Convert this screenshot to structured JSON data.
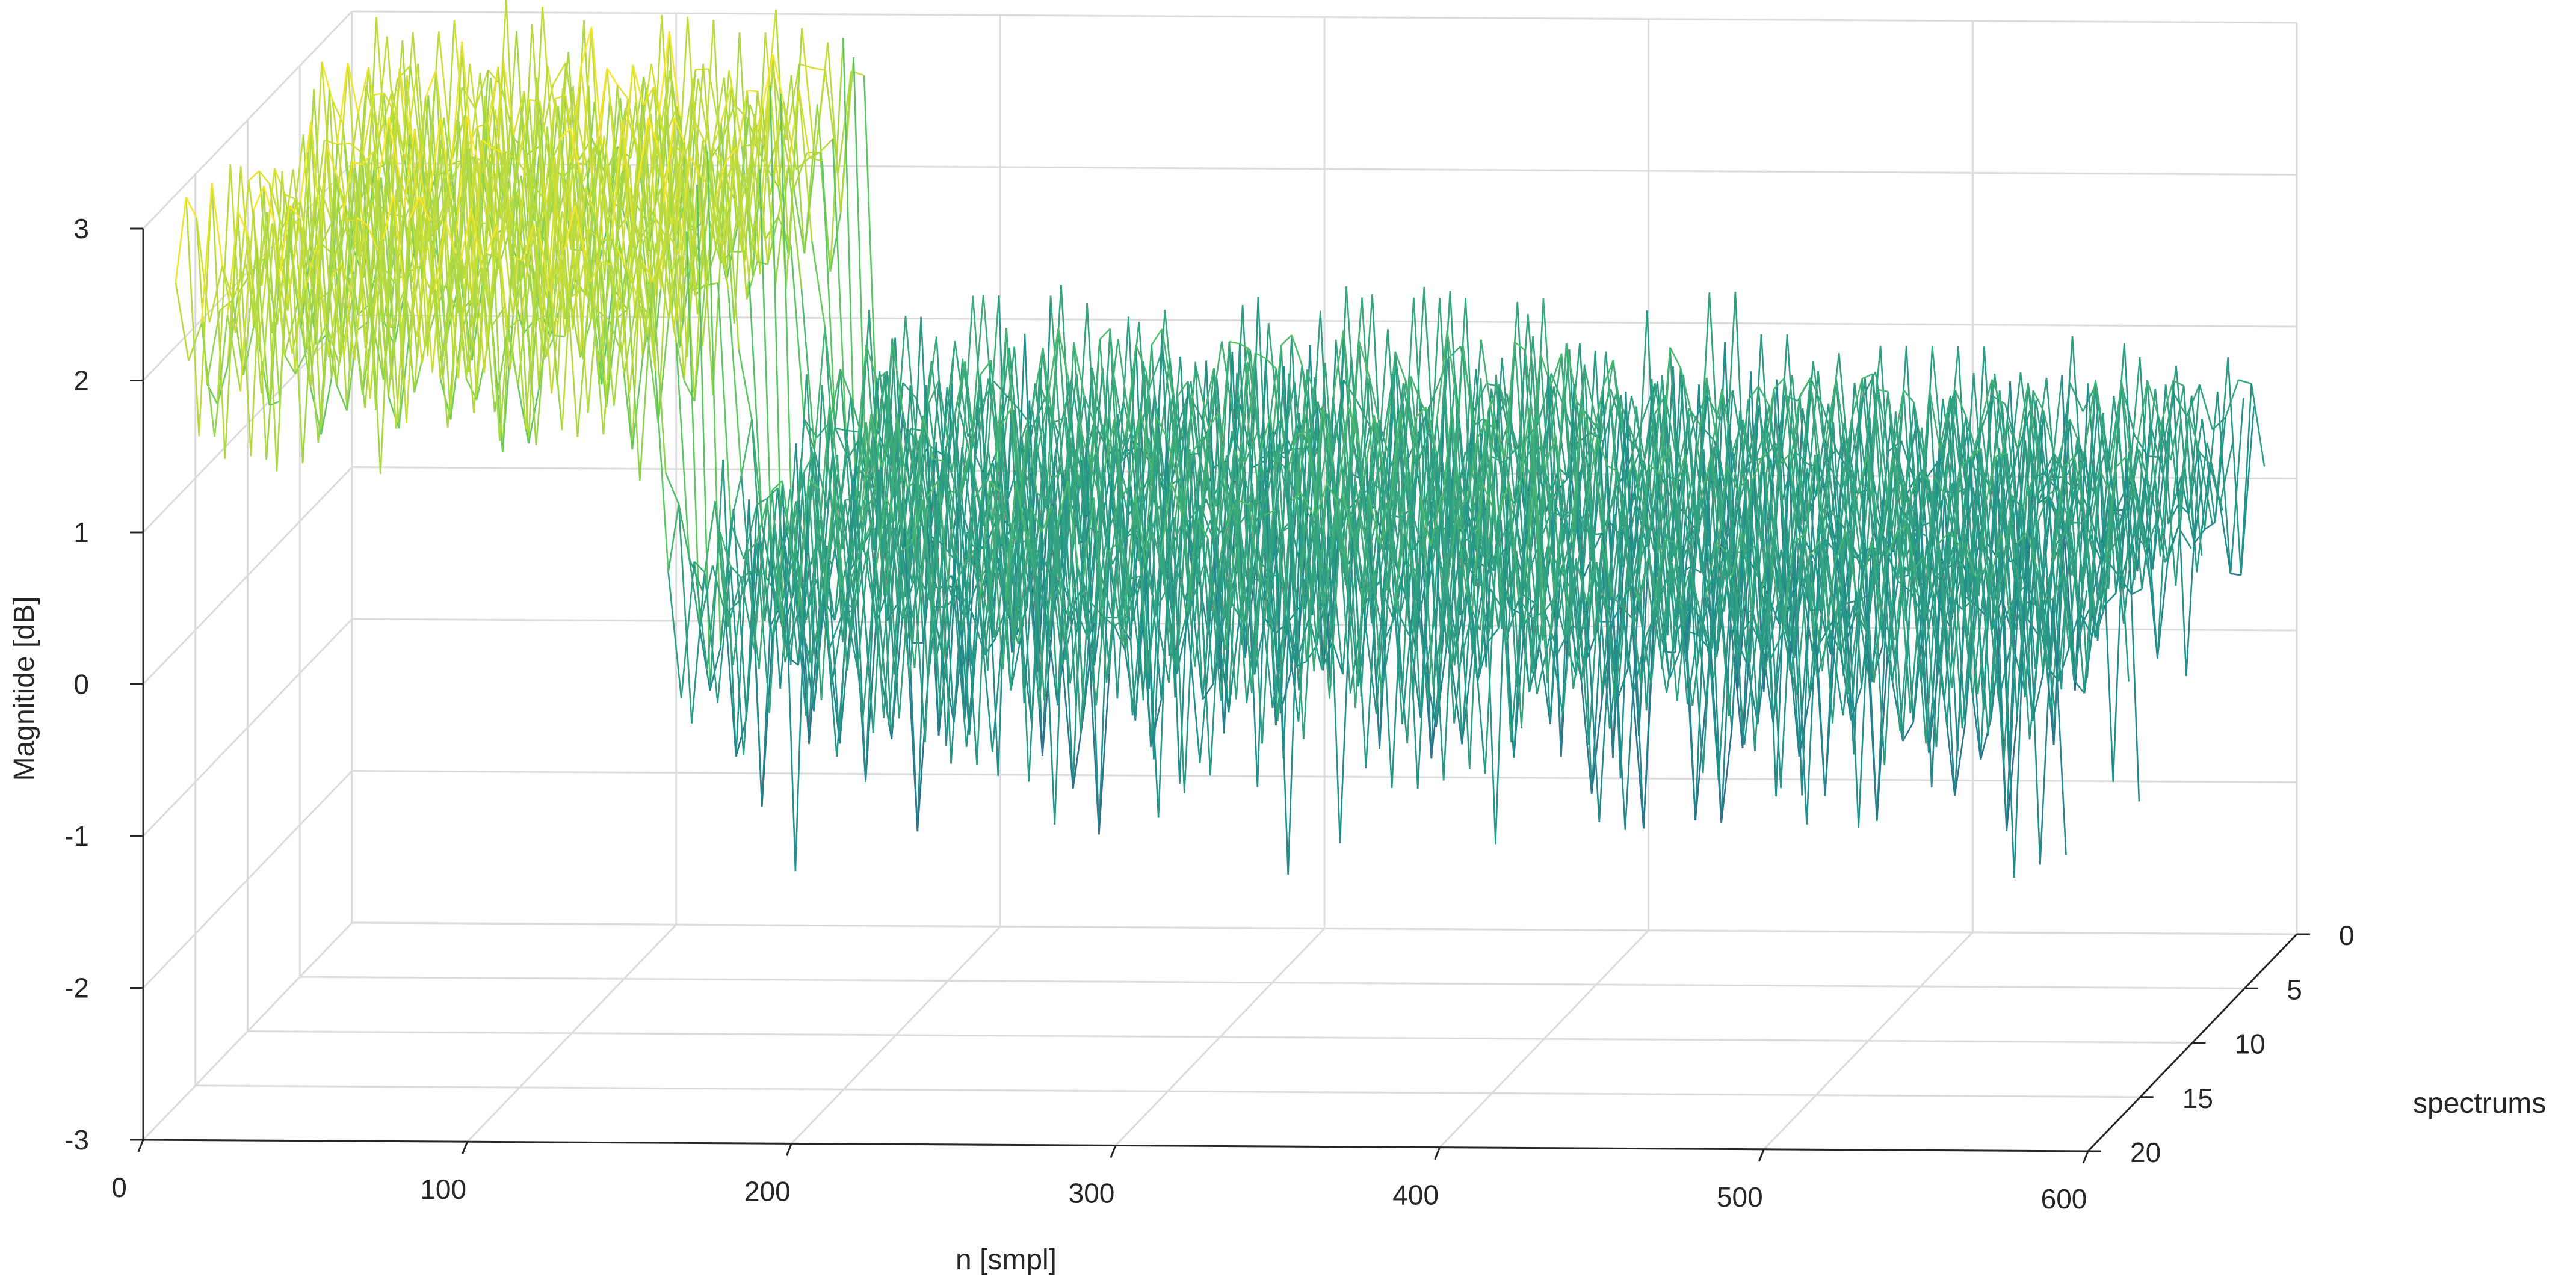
{
  "chart_data": {
    "type": "surface",
    "title": "",
    "xlabel": "n [smpl]",
    "ylabel": "spectrums",
    "zlabel": "Magnitide [dB]",
    "xlim": [
      0,
      600
    ],
    "ylim": [
      0,
      20
    ],
    "zlim": [
      -3,
      3
    ],
    "x_ticks": [
      0,
      100,
      200,
      300,
      400,
      500,
      600
    ],
    "x_tick_labels": [
      "0",
      "100",
      "200",
      "300",
      "400",
      "500",
      "600"
    ],
    "y_ticks": [
      0,
      5,
      10,
      15,
      20
    ],
    "y_tick_labels": [
      "0",
      "5",
      "10",
      "15",
      "20"
    ],
    "z_ticks": [
      -3,
      -2,
      -1,
      0,
      1,
      2,
      3
    ],
    "z_tick_labels": [
      "-3",
      "-2",
      "-1",
      "0",
      "1",
      "2",
      "3"
    ],
    "grid": true,
    "colormap": "viridis",
    "colormap_stops": [
      "#440154",
      "#3b528b",
      "#21918c",
      "#5ec962",
      "#fde725"
    ],
    "regions": [
      {
        "n_range": [
          0,
          160
        ],
        "spectrum_range": [
          0,
          20
        ],
        "mean_magnitude_db": 2.3,
        "peak_magnitude_db": 3.4,
        "min_magnitude_db": 1.2
      },
      {
        "n_range": [
          160,
          430
        ],
        "spectrum_range": [
          0,
          20
        ],
        "mean_magnitude_db": 0.4,
        "peak_magnitude_db": 1.3,
        "min_magnitude_db": -1.3
      },
      {
        "n_range": [
          430,
          600
        ],
        "spectrum_range": [
          0,
          20
        ],
        "mean_magnitude_db": 0.3,
        "peak_magnitude_db": 1.0,
        "min_magnitude_db": -1.3
      }
    ],
    "ripple_period_samples": 8
  }
}
